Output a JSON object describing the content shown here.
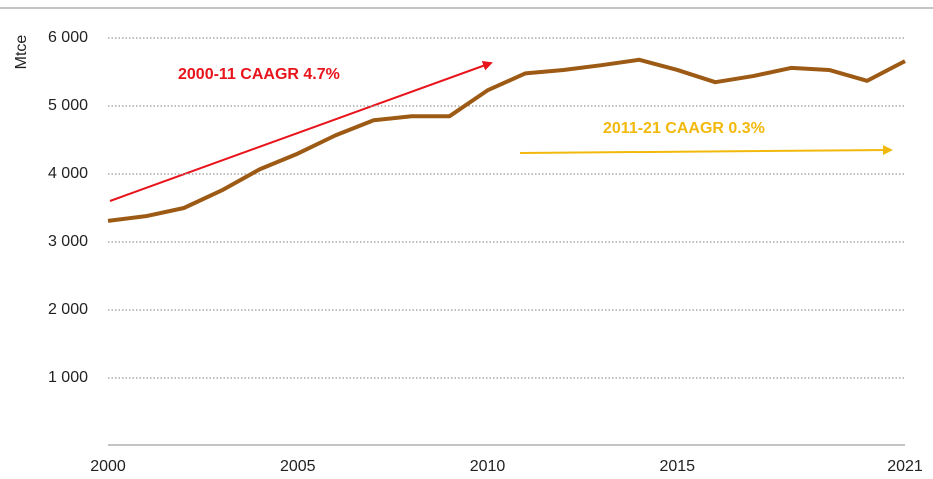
{
  "chart_data": {
    "type": "line",
    "y_label": "Mtce",
    "x": [
      2000,
      2001,
      2002,
      2003,
      2004,
      2005,
      2006,
      2007,
      2008,
      2009,
      2010,
      2011,
      2012,
      2013,
      2014,
      2015,
      2016,
      2017,
      2018,
      2019,
      2020,
      2021
    ],
    "series": [
      {
        "color": "#9c5a14",
        "values": [
          3310,
          3380,
          3500,
          3760,
          4070,
          4300,
          4570,
          4790,
          4850,
          4850,
          5230,
          5480,
          5530,
          5600,
          5680,
          5530,
          5350,
          5440,
          5560,
          5530,
          5370,
          5660
        ]
      }
    ],
    "xlim": [
      2000,
      2021
    ],
    "xticks": [
      2000,
      2005,
      2010,
      2015,
      2021
    ],
    "ylim": [
      0,
      6000
    ],
    "yticks": [
      {
        "value": 1000,
        "label": "1 000"
      },
      {
        "value": 2000,
        "label": "2 000"
      },
      {
        "value": 3000,
        "label": "3 000"
      },
      {
        "value": 4000,
        "label": "4 000"
      },
      {
        "value": 5000,
        "label": "5 000"
      },
      {
        "value": 6000,
        "label": "6 000"
      }
    ],
    "grid": true,
    "annotations": [
      {
        "text": "2000-11 CAAGR 4.7%",
        "color": "#e8141c"
      },
      {
        "text": "2011-21 CAAGR 0.3%",
        "color": "#f2b90c"
      }
    ]
  }
}
